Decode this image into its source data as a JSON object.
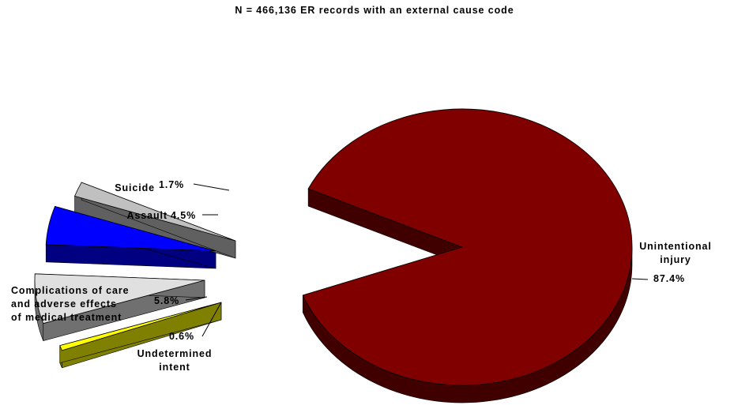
{
  "chart_data": {
    "type": "pie",
    "title": "N = 466,136 ER records with an external cause code",
    "slices": [
      {
        "label": [
          "Unintentional",
          "injury"
        ],
        "value": 87.4,
        "value_label": "87.4%",
        "color": "#800000",
        "exploded": false
      },
      {
        "label": [
          "Undetermined",
          "intent"
        ],
        "value": 0.6,
        "value_label": "0.6%",
        "color": "#ffff00",
        "exploded": true
      },
      {
        "label": [
          "Complications of care",
          "and adverse effects",
          "of medical treatment"
        ],
        "value": 5.8,
        "value_label": "5.8%",
        "color": "#e0e0e0",
        "exploded": true
      },
      {
        "label": [
          "Assault"
        ],
        "value": 4.5,
        "value_label": "4.5%",
        "color": "#0000ff",
        "exploded": true
      },
      {
        "label": [
          "Suicide"
        ],
        "value": 1.7,
        "value_label": "1.7%",
        "color": "#c0c0c0",
        "exploded": true
      }
    ]
  }
}
